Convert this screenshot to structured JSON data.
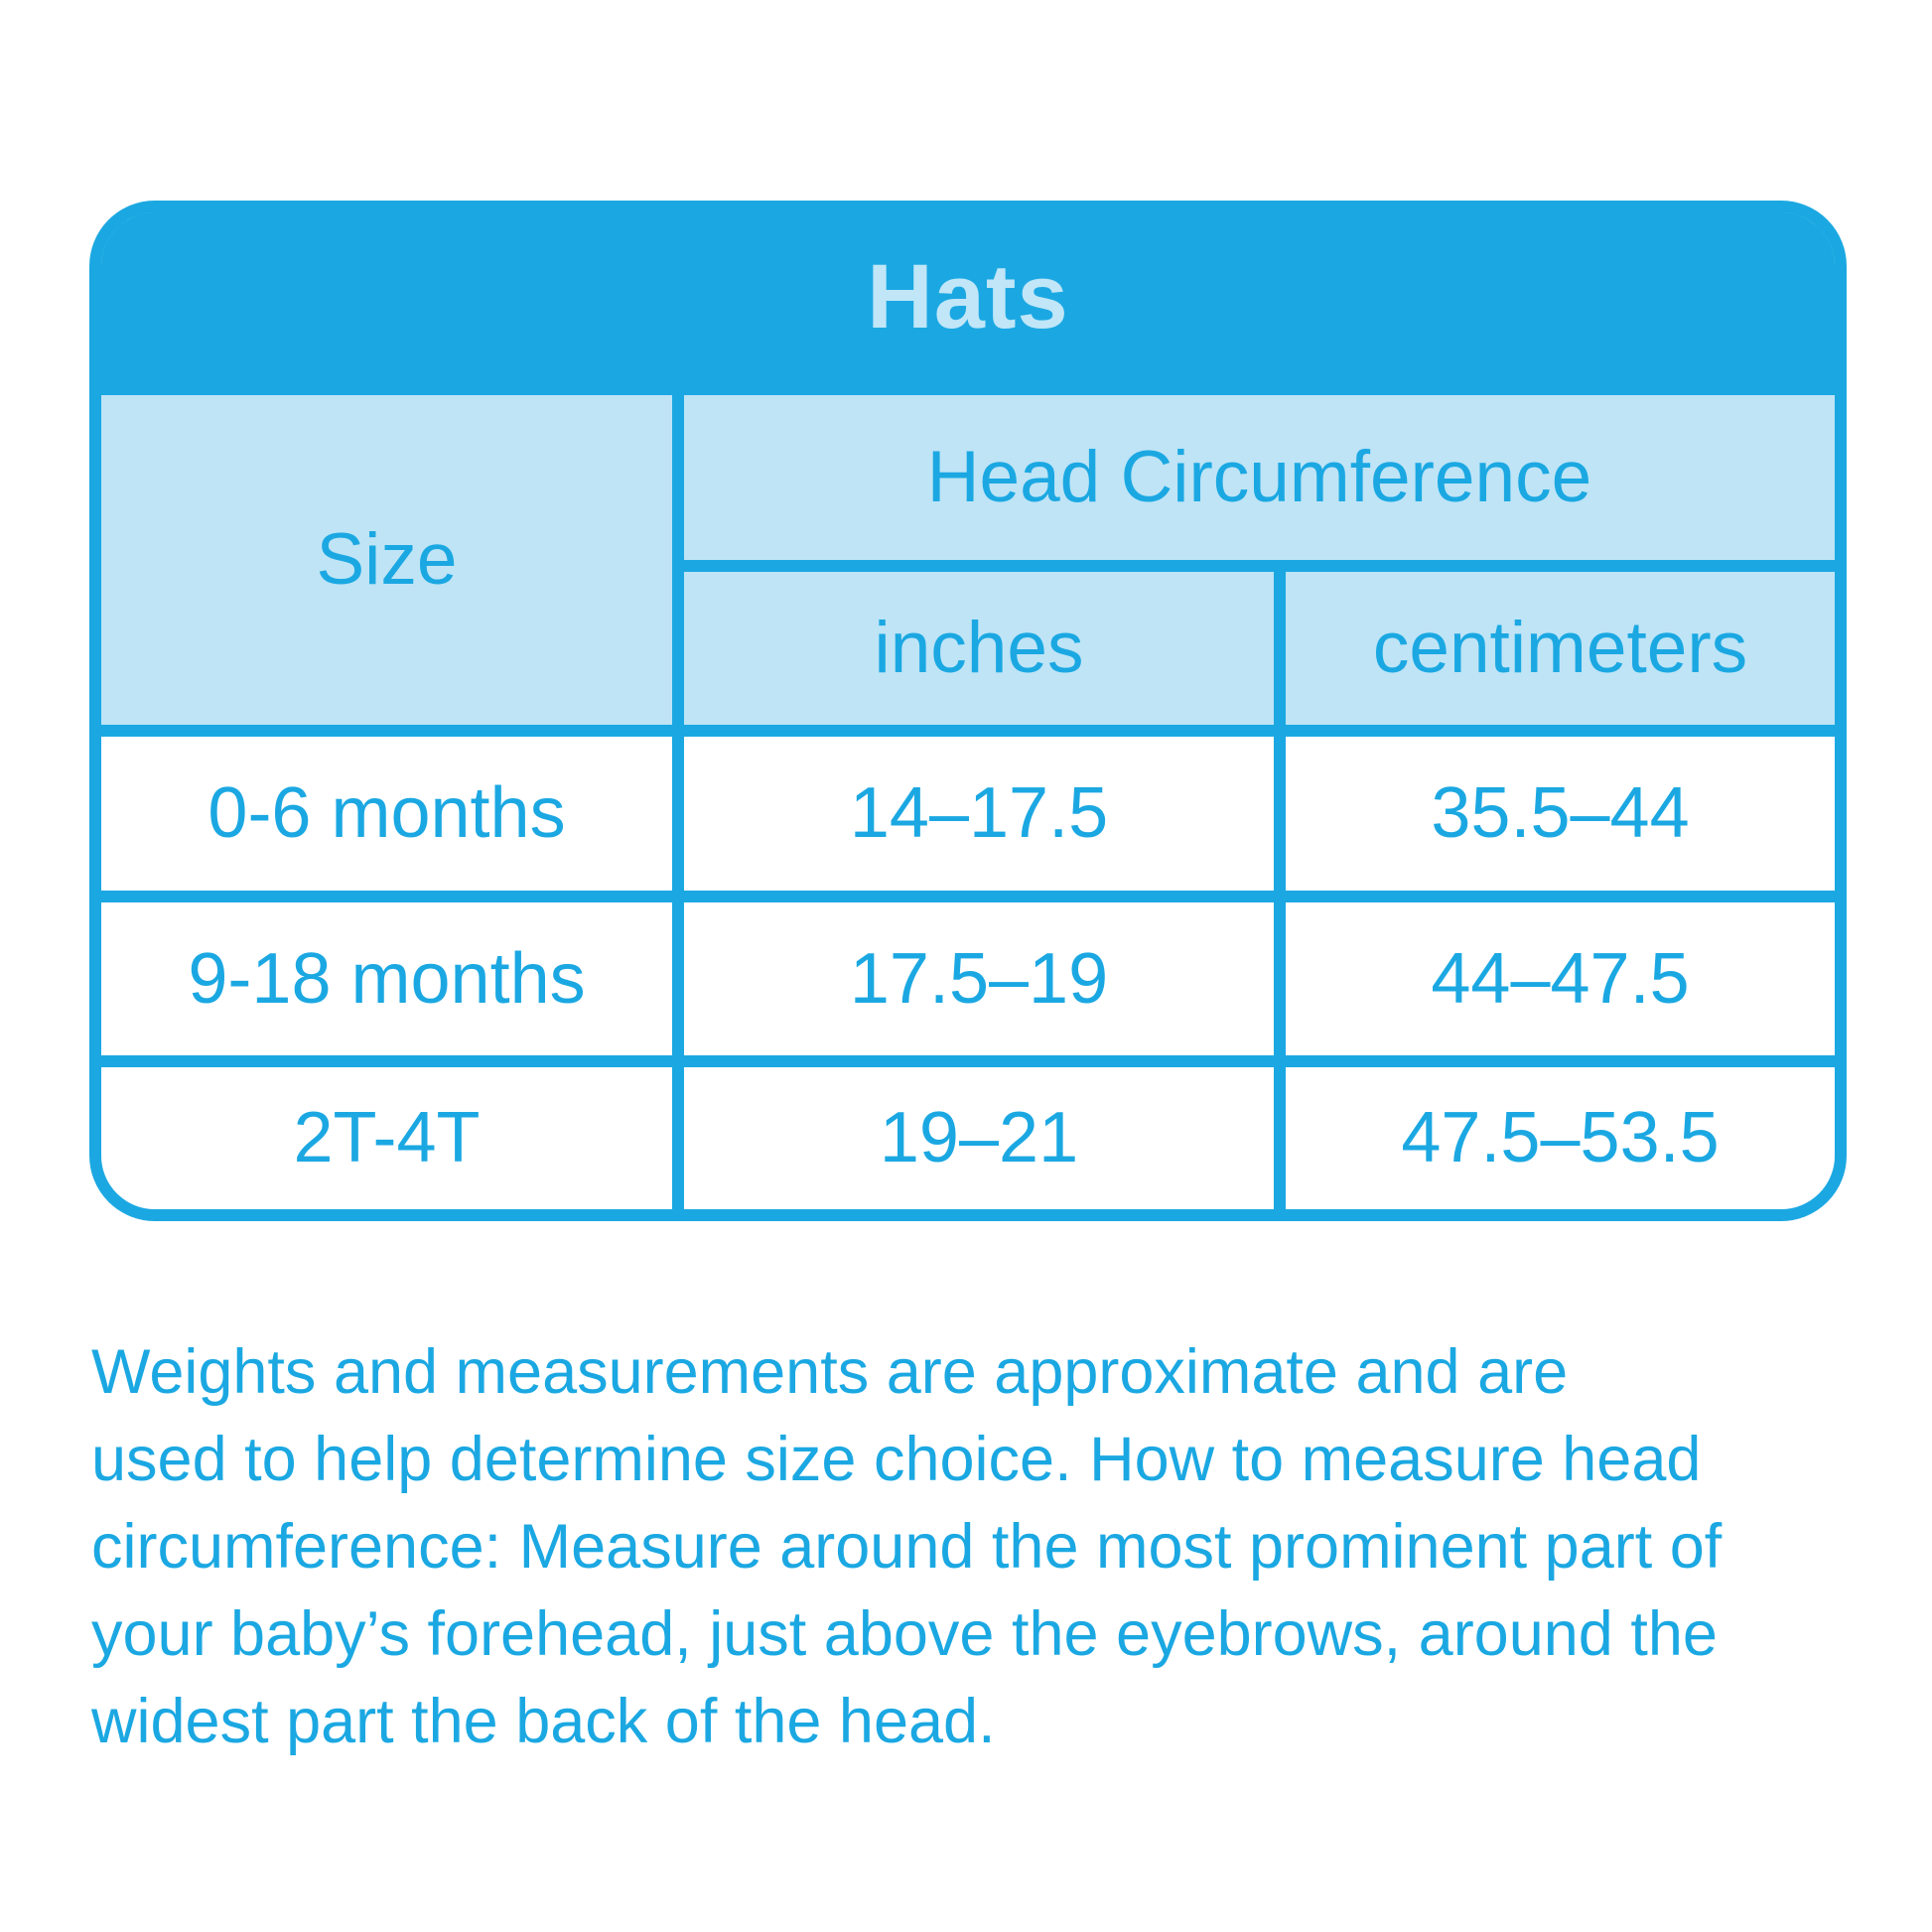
{
  "colors": {
    "brand_cyan": "#1BA8E2",
    "light_blue": "#BEE4F6",
    "title_text": "#C0E6F8",
    "cell_background": "#FFFFFF"
  },
  "chart_data": {
    "type": "table",
    "title": "Hats",
    "columns": [
      "Size",
      "inches",
      "centimeters"
    ],
    "column_groups": [
      {
        "label": "Head Circumference",
        "columns": [
          "inches",
          "centimeters"
        ]
      }
    ],
    "rows": [
      [
        "0-6 months",
        "14–17.5",
        "35.5–44"
      ],
      [
        "9-18 months",
        "17.5–19",
        "44–47.5"
      ],
      [
        "2T-4T",
        "19–21",
        "47.5–53.5"
      ]
    ]
  },
  "footer": {
    "lines": [
      "Weights and measurements are approximate and are",
      "used to help determine size choice. How to measure head",
      "circumference: Measure around the most prominent part of",
      "your baby’s forehead, just above the eyebrows, around the",
      "widest part the back of the head."
    ]
  }
}
